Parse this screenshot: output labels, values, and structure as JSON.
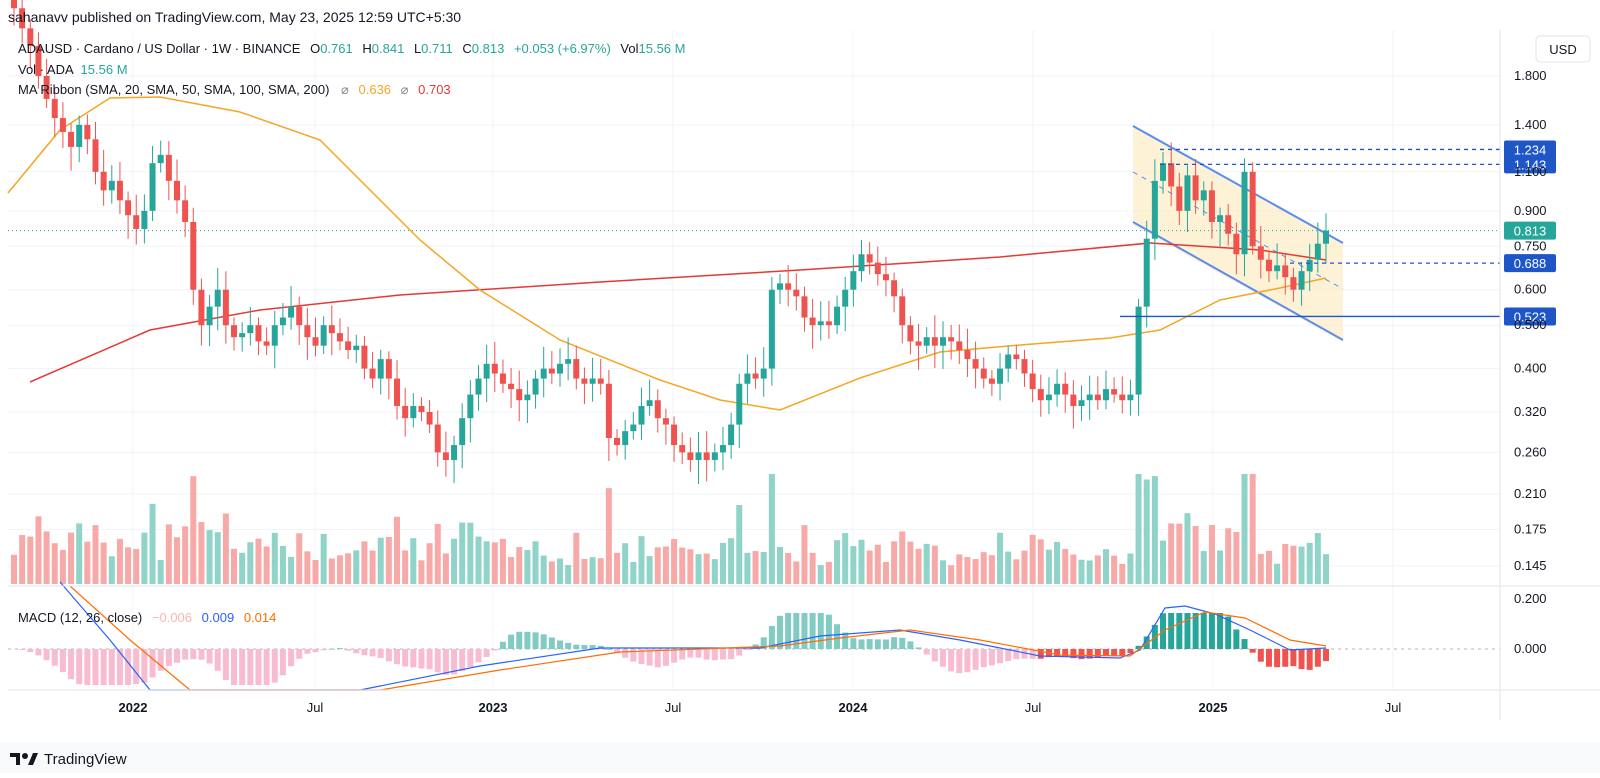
{
  "header": {
    "published": "sahanavv published on TradingView.com, May 23, 2025 12:59 UTC+5:30"
  },
  "legend": {
    "symbol": "ADAUSD · Cardano / US Dollar · 1W · BINANCE",
    "o_label": "O",
    "o_value": "0.761",
    "h_label": "H",
    "h_value": "0.841",
    "l_label": "L",
    "l_value": "0.711",
    "c_label": "C",
    "c_value": "0.813",
    "change": "+0.053 (+6.97%)",
    "vol_label": "Vol",
    "vol_value": "15.56 M",
    "vol_line_label": "Vol · ADA",
    "vol_line_value": "15.56 M",
    "ma_label": "MA Ribbon (SMA, 20, SMA, 50, SMA, 100, SMA, 200)",
    "ma_value_1": "0.636",
    "ma_value_2": "0.703",
    "macd_label": "MACD (12, 26, close)",
    "macd_hist": "−0.006",
    "macd_line": "0.009",
    "macd_signal": "0.014"
  },
  "currency": "USD",
  "brand": "TradingView",
  "colors": {
    "up": "#26a69a",
    "down": "#ef5350",
    "up_vol": "#8fd3c9",
    "down_vol": "#f7a9a7",
    "ma50": "#f5a623",
    "ma200": "#e53935",
    "channel": "#5b8def",
    "channel_fill": "#fcebc4",
    "level": "#1e56c8",
    "macd": "#2962ff",
    "signal": "#ff6d00"
  },
  "chart_data": {
    "type": "candlestick",
    "title": "ADAUSD · Cardano / US Dollar · 1W · BINANCE",
    "scale": "log",
    "y_ticks": [
      "1.800",
      "1.400",
      "1.100",
      "0.900",
      "0.750",
      "0.600",
      "0.500",
      "0.400",
      "0.320",
      "0.260",
      "0.210",
      "0.175",
      "0.145"
    ],
    "x_ticks": [
      "2022",
      "Jul",
      "2023",
      "Jul",
      "2024",
      "Jul",
      "2025",
      "Jul"
    ],
    "macd_ticks": [
      "0.200",
      "0.000"
    ],
    "price_labels": [
      {
        "value": "1.234",
        "kind": "level"
      },
      {
        "value": "1.143",
        "kind": "level"
      },
      {
        "value": "0.813",
        "kind": "last"
      },
      {
        "value": "0.688",
        "kind": "level"
      },
      {
        "value": "0.523",
        "kind": "level"
      }
    ],
    "closes": [
      2.55,
      2.3,
      2.1,
      1.8,
      1.6,
      1.45,
      1.35,
      1.25,
      1.4,
      1.3,
      1.1,
      1.0,
      1.05,
      0.95,
      0.88,
      0.82,
      0.9,
      1.15,
      1.2,
      1.05,
      0.95,
      0.85,
      0.6,
      0.5,
      0.55,
      0.6,
      0.5,
      0.47,
      0.48,
      0.5,
      0.46,
      0.45,
      0.5,
      0.52,
      0.55,
      0.5,
      0.47,
      0.45,
      0.5,
      0.48,
      0.46,
      0.44,
      0.45,
      0.4,
      0.38,
      0.42,
      0.38,
      0.33,
      0.31,
      0.33,
      0.32,
      0.3,
      0.26,
      0.25,
      0.27,
      0.31,
      0.35,
      0.38,
      0.41,
      0.39,
      0.37,
      0.36,
      0.34,
      0.35,
      0.38,
      0.4,
      0.39,
      0.41,
      0.42,
      0.38,
      0.37,
      0.38,
      0.37,
      0.28,
      0.27,
      0.29,
      0.3,
      0.33,
      0.34,
      0.31,
      0.3,
      0.27,
      0.26,
      0.25,
      0.26,
      0.25,
      0.26,
      0.27,
      0.3,
      0.37,
      0.39,
      0.38,
      0.4,
      0.6,
      0.62,
      0.6,
      0.58,
      0.52,
      0.5,
      0.51,
      0.5,
      0.55,
      0.6,
      0.66,
      0.72,
      0.69,
      0.65,
      0.63,
      0.58,
      0.5,
      0.46,
      0.45,
      0.47,
      0.45,
      0.47,
      0.46,
      0.44,
      0.42,
      0.4,
      0.38,
      0.37,
      0.4,
      0.43,
      0.42,
      0.39,
      0.36,
      0.34,
      0.35,
      0.37,
      0.35,
      0.33,
      0.34,
      0.35,
      0.34,
      0.36,
      0.35,
      0.34,
      0.35,
      0.55,
      0.78,
      1.05,
      1.15,
      1.02,
      0.9,
      1.08,
      0.95,
      1.0,
      0.85,
      0.88,
      0.8,
      0.72,
      1.1,
      0.75,
      0.7,
      0.66,
      0.68,
      0.64,
      0.6,
      0.66,
      0.7,
      0.76,
      0.813
    ],
    "series": [
      {
        "name": "MA Ribbon",
        "value": "0.636"
      },
      {
        "name": "MA Ribbon",
        "value": "0.703"
      }
    ],
    "levels": [
      1.234,
      1.143,
      0.688,
      0.523
    ]
  }
}
